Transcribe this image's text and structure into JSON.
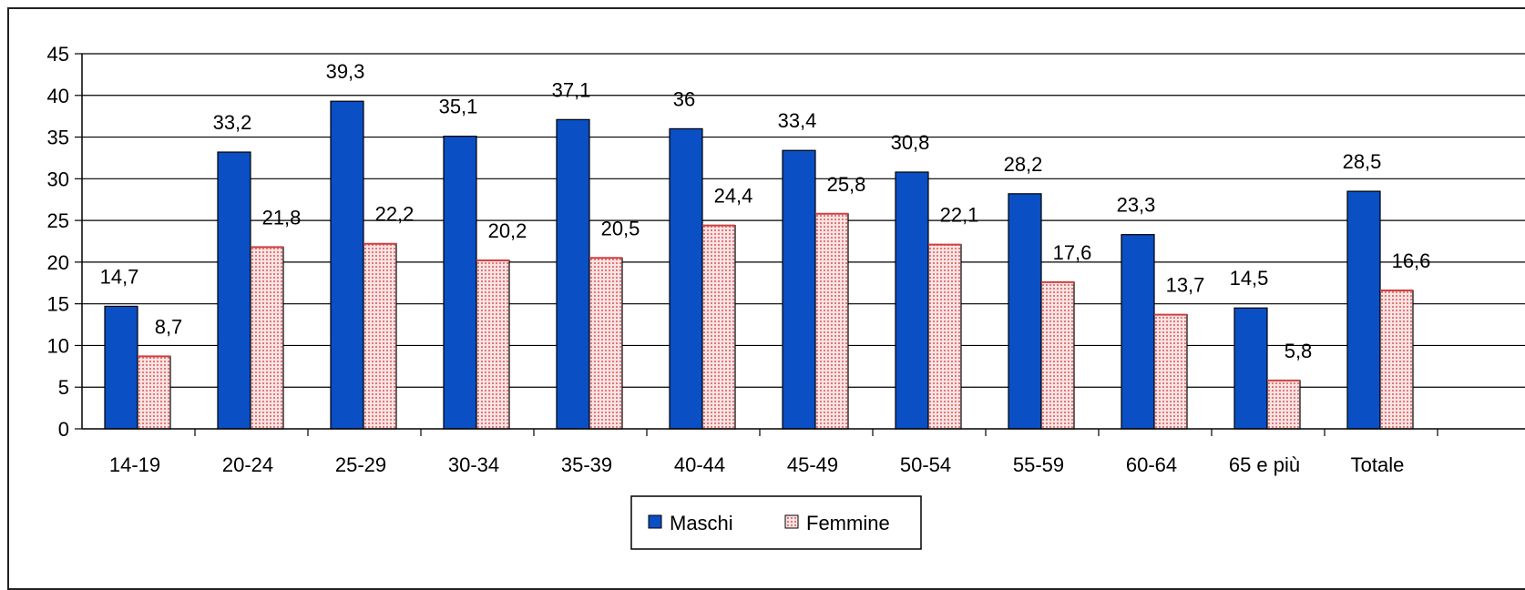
{
  "chart_data": {
    "type": "bar",
    "categories": [
      "14-19",
      "20-24",
      "25-29",
      "30-34",
      "35-39",
      "40-44",
      "45-49",
      "50-54",
      "55-59",
      "60-64",
      "65 e più",
      "Totale"
    ],
    "series": [
      {
        "name": "Maschi",
        "values": [
          14.7,
          33.2,
          39.3,
          35.1,
          37.1,
          36,
          33.4,
          30.8,
          28.2,
          23.3,
          14.5,
          28.5
        ],
        "labels": [
          "14,7",
          "33,2",
          "39,3",
          "35,1",
          "37,1",
          "36",
          "33,4",
          "30,8",
          "28,2",
          "23,3",
          "14,5",
          "28,5"
        ]
      },
      {
        "name": "Femmine",
        "values": [
          8.7,
          21.8,
          22.2,
          20.2,
          20.5,
          24.4,
          25.8,
          22.1,
          17.6,
          13.7,
          5.8,
          16.6
        ],
        "labels": [
          "8,7",
          "21,8",
          "22,2",
          "20,2",
          "20,5",
          "24,4",
          "25,8",
          "22,1",
          "17,6",
          "13,7",
          "5,8",
          "16,6"
        ]
      }
    ],
    "ylim": [
      0,
      45
    ],
    "yticks": [
      "0",
      "5",
      "10",
      "15",
      "20",
      "25",
      "30",
      "35",
      "40",
      "45"
    ],
    "grid": true,
    "legend_position": "bottom"
  },
  "colors": {
    "maschi": "#0a4fc4",
    "femmine": "#f4b8b8",
    "femmine_pattern": "#d04040"
  }
}
